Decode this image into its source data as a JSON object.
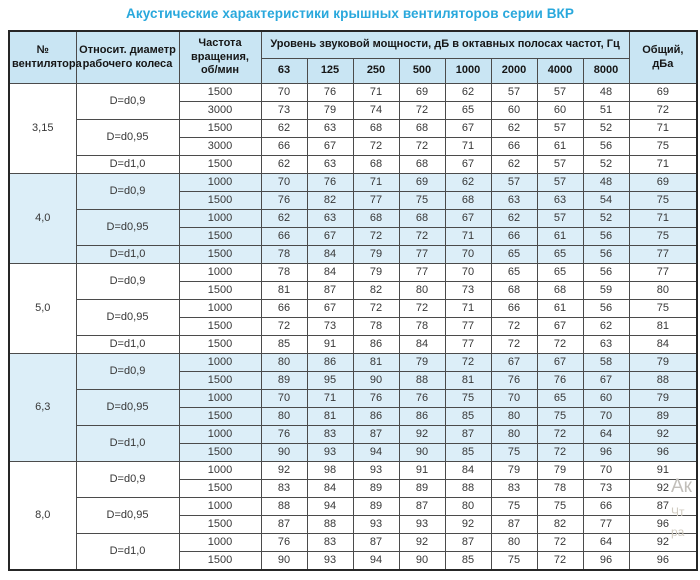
{
  "title": "Акустические характеристики крышных вентиляторов серии ВКР",
  "header": {
    "fan_number": "№ вентилятора",
    "diameter": "Относит. диаметр рабочего колеса",
    "speed": "Частота вращения, об/мин",
    "spl_group": "Уровень звуковой мощности, дБ в октавных полосах частот, Гц",
    "freqs": [
      "63",
      "125",
      "250",
      "500",
      "1000",
      "2000",
      "4000",
      "8000"
    ],
    "total": "Общий, дБа"
  },
  "colors": {
    "title": "#29a8dc",
    "header_bg": "#c9e5f3",
    "shaded_row_bg": "#dceef8",
    "border": "#4b4b4b",
    "outer_border": "#262626"
  },
  "watermark": {
    "line1": "Ак",
    "line2": "Чт",
    "line3": "ра"
  },
  "groups": [
    {
      "fan": "3,15",
      "shaded": false,
      "rows": [
        {
          "diameter": "D=d0,9",
          "dspan": 2,
          "speed": "1500",
          "levels": [
            70,
            76,
            71,
            69,
            62,
            57,
            57,
            48
          ],
          "total": 69
        },
        {
          "speed": "3000",
          "levels": [
            73,
            79,
            74,
            72,
            65,
            60,
            60,
            51
          ],
          "total": 72
        },
        {
          "diameter": "D=d0,95",
          "dspan": 2,
          "speed": "1500",
          "levels": [
            62,
            63,
            68,
            68,
            67,
            62,
            57,
            52
          ],
          "total": 71
        },
        {
          "speed": "3000",
          "levels": [
            66,
            67,
            72,
            72,
            71,
            66,
            61,
            56
          ],
          "total": 75
        },
        {
          "diameter": "D=d1,0",
          "dspan": 1,
          "speed": "1500",
          "levels": [
            62,
            63,
            68,
            68,
            67,
            62,
            57,
            52
          ],
          "total": 71
        }
      ]
    },
    {
      "fan": "4,0",
      "shaded": true,
      "rows": [
        {
          "diameter": "D=d0,9",
          "dspan": 2,
          "speed": "1000",
          "levels": [
            70,
            76,
            71,
            69,
            62,
            57,
            57,
            48
          ],
          "total": 69
        },
        {
          "speed": "1500",
          "levels": [
            76,
            82,
            77,
            75,
            68,
            63,
            63,
            54
          ],
          "total": 75
        },
        {
          "diameter": "D=d0,95",
          "dspan": 2,
          "speed": "1000",
          "levels": [
            62,
            63,
            68,
            68,
            67,
            62,
            57,
            52
          ],
          "total": 71
        },
        {
          "speed": "1500",
          "levels": [
            66,
            67,
            72,
            72,
            71,
            66,
            61,
            56
          ],
          "total": 75
        },
        {
          "diameter": "D=d1,0",
          "dspan": 1,
          "speed": "1500",
          "levels": [
            78,
            84,
            79,
            77,
            70,
            65,
            65,
            56
          ],
          "total": 77
        }
      ]
    },
    {
      "fan": "5,0",
      "shaded": false,
      "rows": [
        {
          "diameter": "D=d0,9",
          "dspan": 2,
          "speed": "1000",
          "levels": [
            78,
            84,
            79,
            77,
            70,
            65,
            65,
            56
          ],
          "total": 77
        },
        {
          "speed": "1500",
          "levels": [
            81,
            87,
            82,
            80,
            73,
            68,
            68,
            59
          ],
          "total": 80
        },
        {
          "diameter": "D=d0,95",
          "dspan": 2,
          "speed": "1000",
          "levels": [
            66,
            67,
            72,
            72,
            71,
            66,
            61,
            56
          ],
          "total": 75
        },
        {
          "speed": "1500",
          "levels": [
            72,
            73,
            78,
            78,
            77,
            72,
            67,
            62
          ],
          "total": 81
        },
        {
          "diameter": "D=d1,0",
          "dspan": 1,
          "speed": "1500",
          "levels": [
            85,
            91,
            86,
            84,
            77,
            72,
            72,
            63
          ],
          "total": 84
        }
      ]
    },
    {
      "fan": "6,3",
      "shaded": true,
      "rows": [
        {
          "diameter": "D=d0,9",
          "dspan": 2,
          "speed": "1000",
          "levels": [
            80,
            86,
            81,
            79,
            72,
            67,
            67,
            58
          ],
          "total": 79
        },
        {
          "speed": "1500",
          "levels": [
            89,
            95,
            90,
            88,
            81,
            76,
            76,
            67
          ],
          "total": 88
        },
        {
          "diameter": "D=d0,95",
          "dspan": 2,
          "speed": "1000",
          "levels": [
            70,
            71,
            76,
            76,
            75,
            70,
            65,
            60
          ],
          "total": 79
        },
        {
          "speed": "1500",
          "levels": [
            80,
            81,
            86,
            86,
            85,
            80,
            75,
            70
          ],
          "total": 89
        },
        {
          "diameter": "D=d1,0",
          "dspan": 2,
          "speed": "1000",
          "levels": [
            76,
            83,
            87,
            92,
            87,
            80,
            72,
            64
          ],
          "total": 92
        },
        {
          "speed": "1500",
          "levels": [
            90,
            93,
            94,
            90,
            85,
            75,
            72,
            96
          ],
          "total": 96
        }
      ]
    },
    {
      "fan": "8,0",
      "shaded": false,
      "rows": [
        {
          "diameter": "D=d0,9",
          "dspan": 2,
          "speed": "1000",
          "levels": [
            92,
            98,
            93,
            91,
            84,
            79,
            79,
            70
          ],
          "total": 91
        },
        {
          "speed": "1500",
          "levels": [
            83,
            84,
            89,
            89,
            88,
            83,
            78,
            73
          ],
          "total": 92
        },
        {
          "diameter": "D=d0,95",
          "dspan": 2,
          "speed": "1000",
          "levels": [
            88,
            94,
            89,
            87,
            80,
            75,
            75,
            66
          ],
          "total": 87
        },
        {
          "speed": "1500",
          "levels": [
            87,
            88,
            93,
            93,
            92,
            87,
            82,
            77
          ],
          "total": 96
        },
        {
          "diameter": "D=d1,0",
          "dspan": 2,
          "speed": "1000",
          "levels": [
            76,
            83,
            87,
            92,
            87,
            80,
            72,
            64
          ],
          "total": 92
        },
        {
          "speed": "1500",
          "levels": [
            90,
            93,
            94,
            90,
            85,
            75,
            72,
            96
          ],
          "total": 96
        }
      ]
    }
  ]
}
